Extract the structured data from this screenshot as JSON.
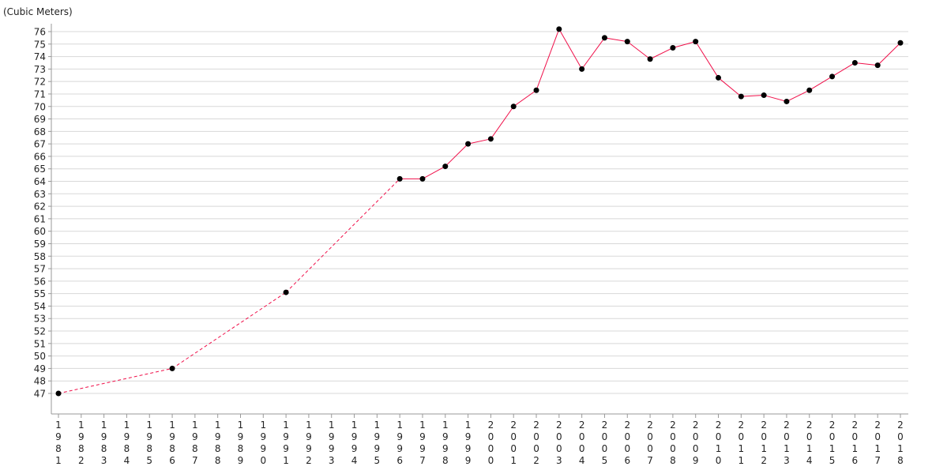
{
  "chart_data": {
    "type": "line",
    "ylabel": "(Cubic Meters)",
    "ylim": [
      47,
      76
    ],
    "yticks": [
      47,
      48,
      49,
      50,
      51,
      52,
      53,
      54,
      55,
      56,
      57,
      58,
      59,
      60,
      61,
      62,
      63,
      64,
      65,
      66,
      67,
      68,
      69,
      70,
      71,
      72,
      73,
      74,
      75,
      76
    ],
    "xlim": [
      1981,
      2018
    ],
    "xticks": [
      1981,
      1982,
      1983,
      1984,
      1985,
      1986,
      1987,
      1988,
      1989,
      1990,
      1991,
      1992,
      1993,
      1994,
      1995,
      1996,
      1997,
      1998,
      1999,
      2000,
      2001,
      2002,
      2003,
      2004,
      2005,
      2006,
      2007,
      2008,
      2009,
      2010,
      2011,
      2012,
      2013,
      2014,
      2015,
      2016,
      2017,
      2018
    ],
    "grid": true,
    "line_color": "#f0104a",
    "marker_color": "#000000",
    "gap_style": "dashed",
    "series": [
      {
        "x": [
          1981,
          1986,
          1991,
          1996,
          1997,
          1998,
          1999,
          2000,
          2001,
          2002,
          2003,
          2004,
          2005,
          2006,
          2007,
          2008,
          2009,
          2010,
          2011,
          2012,
          2013,
          2014,
          2015,
          2016,
          2017,
          2018
        ],
        "y": [
          47.0,
          49.0,
          55.1,
          64.2,
          64.2,
          65.2,
          67.0,
          67.4,
          70.0,
          71.3,
          76.2,
          73.0,
          75.5,
          75.2,
          73.8,
          74.7,
          75.2,
          72.3,
          70.8,
          70.9,
          70.4,
          71.3,
          72.4,
          73.5,
          73.3,
          75.1
        ]
      }
    ]
  }
}
